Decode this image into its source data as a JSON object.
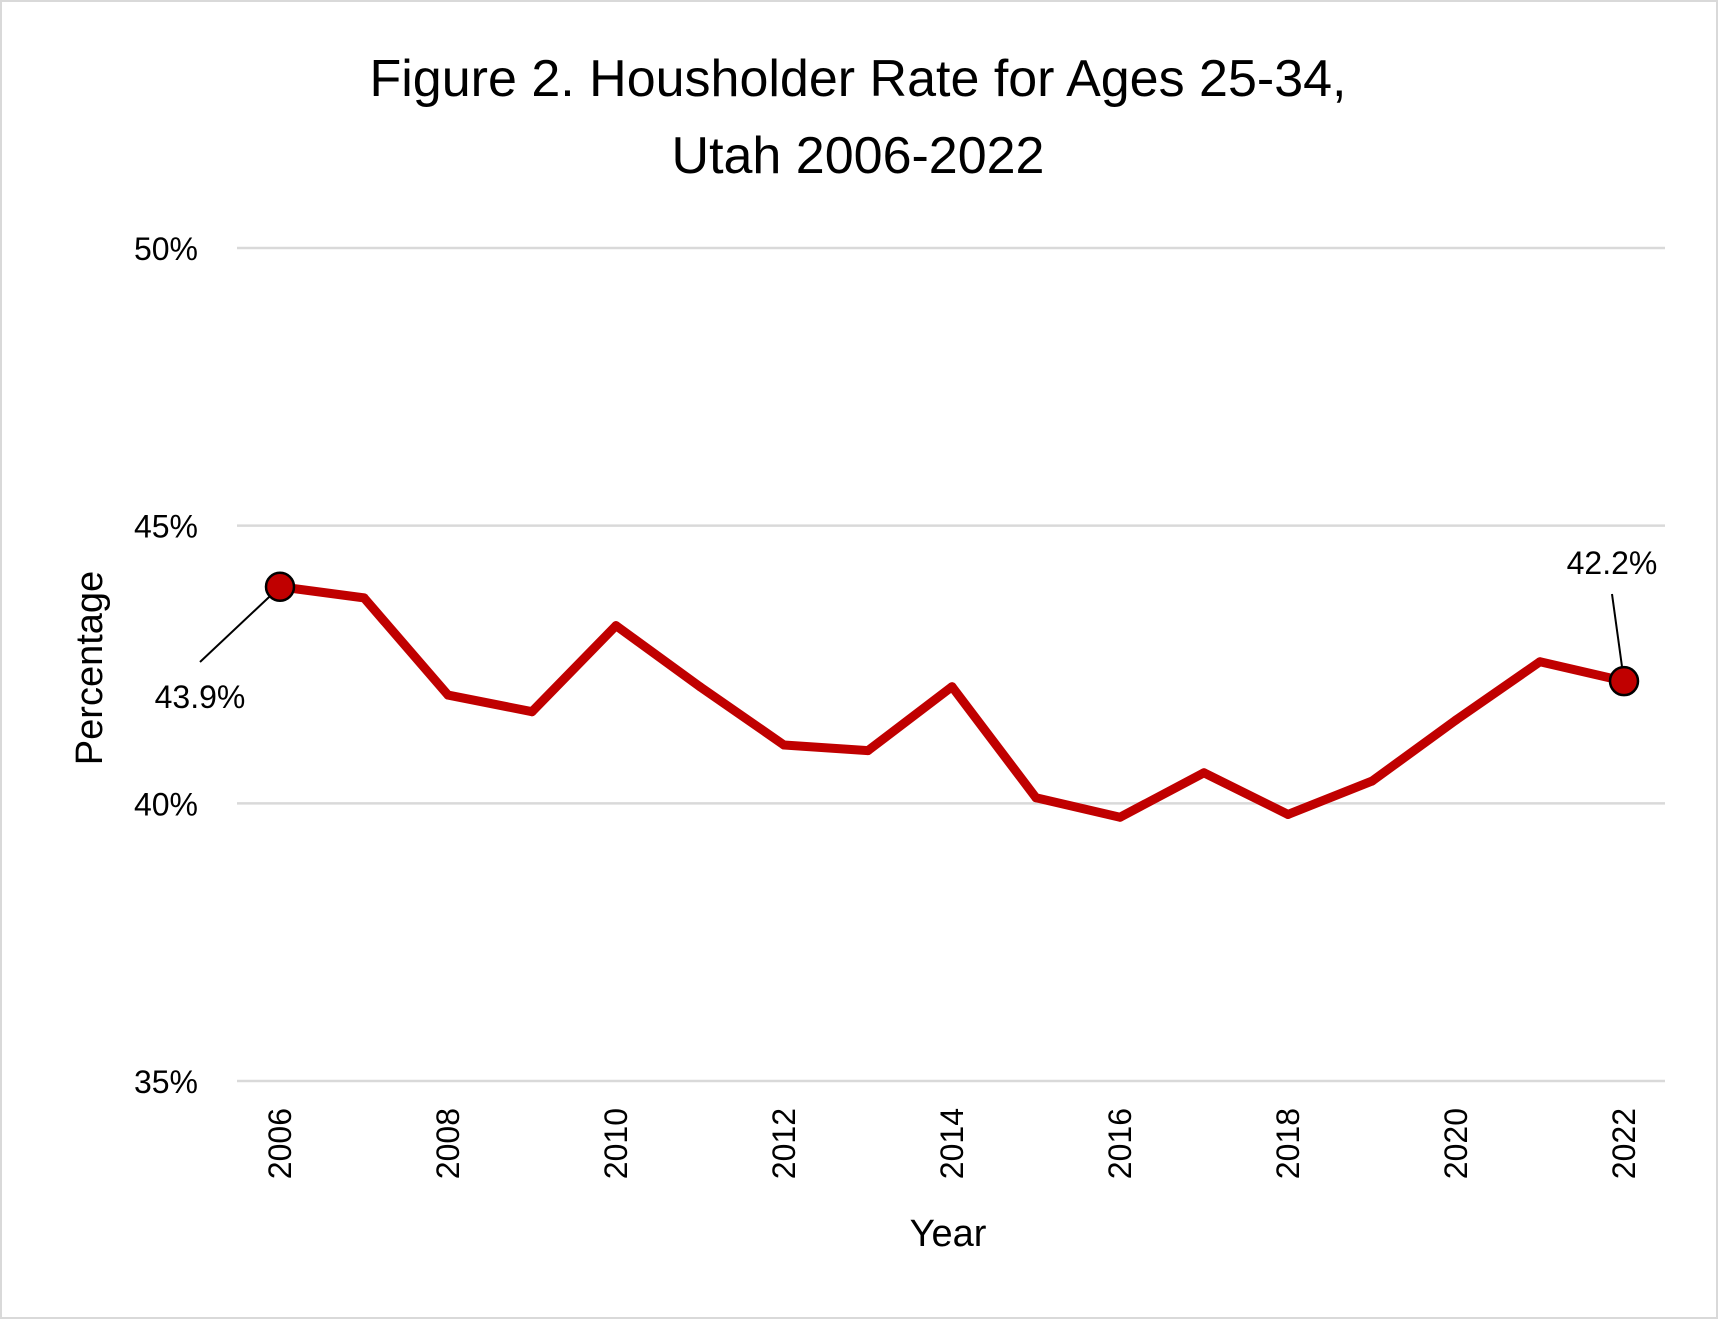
{
  "chart_data": {
    "type": "line",
    "title": [
      "Figure 2. Housholder Rate for Ages 25-34,",
      "Utah 2006-2022"
    ],
    "xlabel": "Year",
    "ylabel": "Percentage",
    "ylim": [
      35,
      50
    ],
    "yticks": [
      35,
      40,
      45,
      50
    ],
    "ytick_labels": [
      "35%",
      "40%",
      "45%",
      "50%"
    ],
    "xticks": [
      2006,
      2008,
      2010,
      2012,
      2014,
      2016,
      2018,
      2020,
      2022
    ],
    "xtick_labels": [
      "2006",
      "2008",
      "2010",
      "2012",
      "2014",
      "2016",
      "2018",
      "2020",
      "2022"
    ],
    "grid": "horizontal",
    "line_color": "#c00000",
    "series": [
      {
        "x": [
          2006,
          2007,
          2008,
          2009,
          2010,
          2011,
          2012,
          2013,
          2014,
          2015,
          2016,
          2017,
          2018,
          2019,
          2020,
          2021,
          2022
        ],
        "values": [
          43.9,
          43.7,
          41.95,
          41.65,
          43.2,
          42.1,
          41.05,
          40.95,
          42.1,
          40.1,
          39.75,
          40.55,
          39.8,
          40.4,
          41.5,
          42.55,
          42.2
        ]
      }
    ],
    "annotations": [
      {
        "x": 2006,
        "y": 43.9,
        "text": "43.9%"
      },
      {
        "x": 2022,
        "y": 42.2,
        "text": "42.2%"
      }
    ]
  }
}
